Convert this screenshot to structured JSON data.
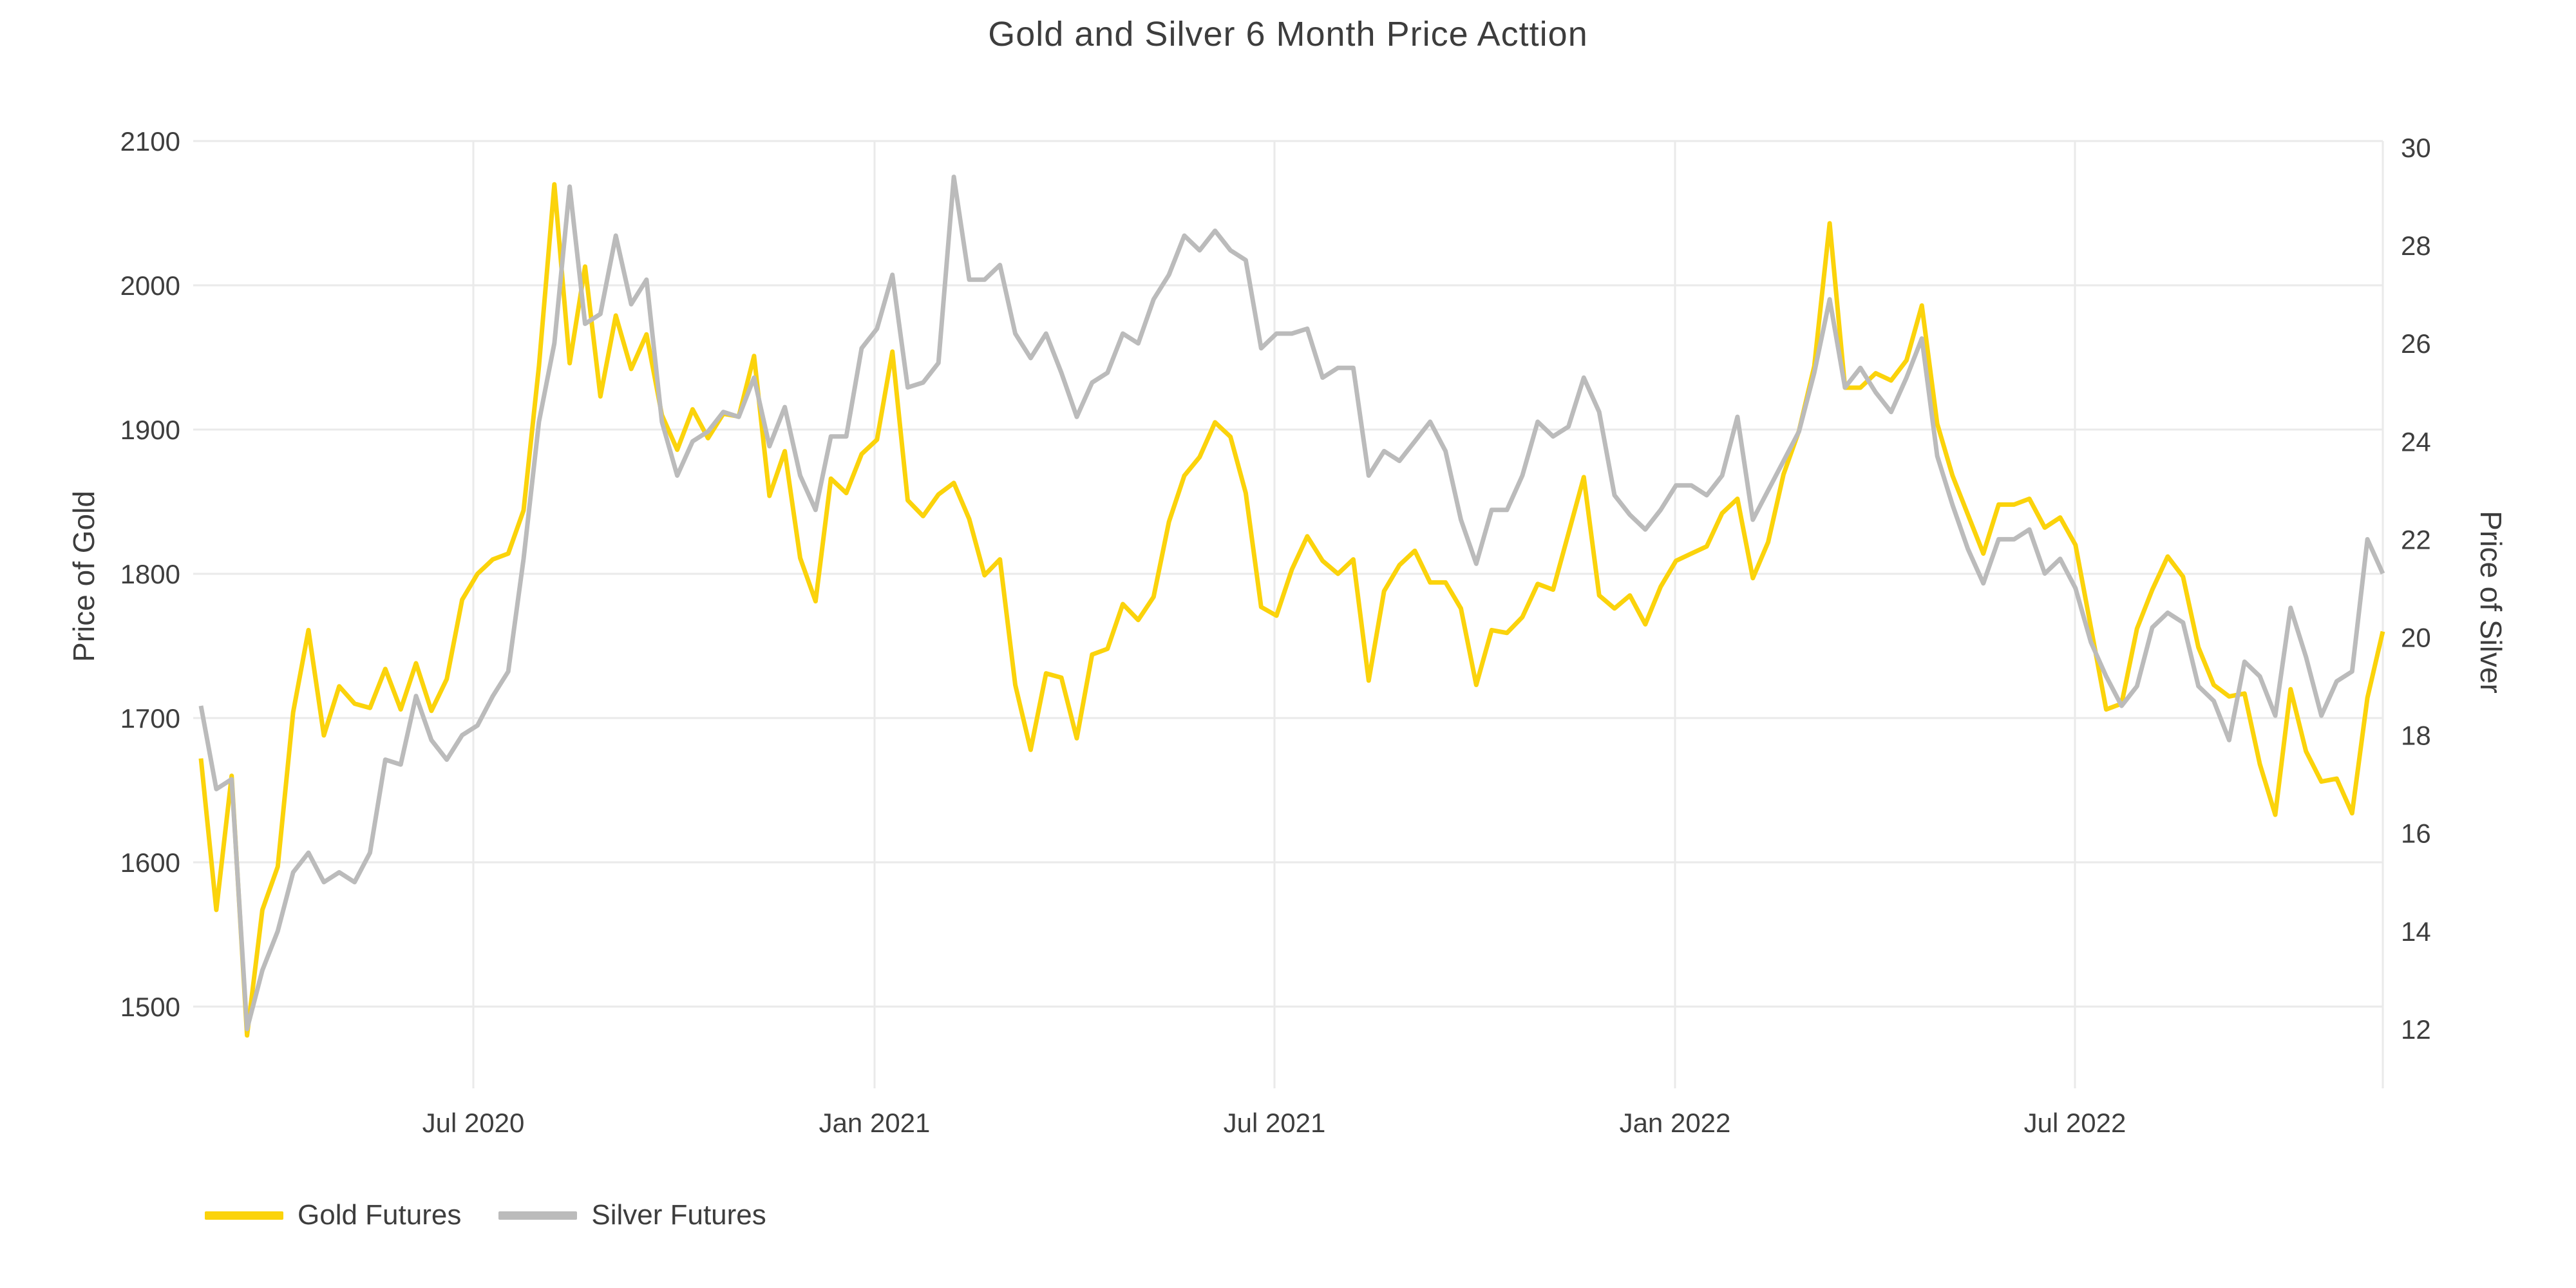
{
  "title": "Gold and Silver 6 Month Price Acttion",
  "left_axis": {
    "title": "Price of Gold",
    "ticks": [
      2100,
      2000,
      1900,
      1800,
      1700,
      1600,
      1500
    ]
  },
  "right_axis": {
    "title": "Price of Silver",
    "ticks": [
      30,
      28,
      26,
      24,
      22,
      20,
      18,
      16,
      14,
      12
    ]
  },
  "x_axis": {
    "tick_labels": [
      "Jul 2020",
      "Jan 2021",
      "Jul 2021",
      "Jan 2022",
      "Jul 2022"
    ]
  },
  "legend": [
    {
      "label": "Gold Futures",
      "color": "#FBD30B"
    },
    {
      "label": "Silver Futures",
      "color": "#BBBBBB"
    }
  ],
  "colors": {
    "background": "#ffffff",
    "gridline": "#EAEAEA",
    "text": "#3E3E3E",
    "gold_line": "#FBD30B",
    "silver_line": "#BBBBBB"
  },
  "chart_data": {
    "type": "line",
    "title": "Gold and Silver 6 Month Price Acttion",
    "x_start_date": "2020-02-24",
    "x_end_date": "2022-11-14",
    "x_interval": "weekly",
    "xlabel": "",
    "ylabel_left": "Price of Gold",
    "ylabel_right": "Price of Silver",
    "ylim_left": [
      1443,
      2100
    ],
    "ylim_right": [
      10.8,
      30.1
    ],
    "grid": true,
    "legend_position": "bottom-left",
    "series": [
      {
        "name": "Gold Futures",
        "axis": "left",
        "color": "#FBD30B",
        "values": [
          1672,
          1567,
          1660,
          1480,
          1567,
          1597,
          1704,
          1761,
          1688,
          1722,
          1710,
          1707,
          1734,
          1706,
          1738,
          1705,
          1727,
          1782,
          1800,
          1810,
          1814,
          1844,
          1944,
          2070,
          1946,
          2013,
          1923,
          1979,
          1942,
          1966,
          1910,
          1886,
          1914,
          1894,
          1911,
          1909,
          1951,
          1854,
          1885,
          1811,
          1781,
          1866,
          1856,
          1883,
          1893,
          1954,
          1851,
          1840,
          1855,
          1863,
          1838,
          1799,
          1810,
          1723,
          1678,
          1731,
          1728,
          1686,
          1744,
          1748,
          1779,
          1768,
          1784,
          1836,
          1868,
          1881,
          1905,
          1895,
          1856,
          1777,
          1771,
          1803,
          1826,
          1809,
          1800,
          1810,
          1726,
          1788,
          1806,
          1816,
          1794,
          1794,
          1776,
          1723,
          1761,
          1759,
          1770,
          1793,
          1789,
          1828,
          1867,
          1785,
          1776,
          1785,
          1765,
          1791,
          1809,
          1814,
          1819,
          1842,
          1852,
          1797,
          1822,
          1869,
          1899,
          1944,
          2043,
          1929,
          1929,
          1939,
          1934,
          1948,
          1986,
          1904,
          1868,
          1841,
          1814,
          1848,
          1848,
          1852,
          1832,
          1839,
          1820,
          1763,
          1706,
          1710,
          1762,
          1789,
          1812,
          1798,
          1749,
          1723,
          1715,
          1717,
          1668,
          1633,
          1720,
          1677,
          1656,
          1658,
          1634,
          1714,
          1760
        ]
      },
      {
        "name": "Silver Futures",
        "axis": "right",
        "color": "#BBBBBB",
        "values": [
          18.6,
          16.9,
          17.1,
          12.0,
          13.2,
          14.0,
          15.2,
          15.6,
          15.0,
          15.2,
          15.0,
          15.6,
          17.5,
          17.4,
          18.8,
          17.9,
          17.5,
          18.0,
          18.2,
          18.8,
          19.3,
          21.6,
          24.4,
          26.0,
          29.2,
          26.4,
          26.6,
          28.2,
          26.8,
          27.3,
          24.4,
          23.3,
          24.0,
          24.2,
          24.6,
          24.5,
          25.3,
          23.9,
          24.7,
          23.3,
          22.6,
          24.1,
          24.1,
          25.9,
          26.3,
          27.4,
          25.1,
          25.2,
          25.6,
          29.4,
          27.3,
          27.3,
          27.6,
          26.2,
          25.7,
          26.2,
          25.4,
          24.5,
          25.2,
          25.4,
          26.2,
          26.0,
          26.9,
          27.4,
          28.2,
          27.9,
          28.3,
          27.9,
          27.7,
          25.9,
          26.2,
          26.2,
          26.3,
          25.3,
          25.5,
          25.5,
          23.3,
          23.8,
          23.6,
          24.0,
          24.4,
          23.8,
          22.4,
          21.5,
          22.6,
          22.6,
          23.3,
          24.4,
          24.1,
          24.3,
          25.3,
          24.6,
          22.9,
          22.5,
          22.2,
          22.6,
          23.1,
          23.1,
          22.9,
          23.3,
          24.5,
          22.4,
          23.0,
          23.6,
          24.2,
          25.4,
          26.9,
          25.1,
          25.5,
          25.0,
          24.6,
          25.3,
          26.1,
          23.7,
          22.7,
          21.8,
          21.1,
          22.0,
          22.0,
          22.2,
          21.3,
          21.6,
          21.0,
          19.9,
          19.2,
          18.6,
          19.0,
          20.2,
          20.5,
          20.3,
          19.0,
          18.7,
          17.9,
          19.5,
          19.2,
          18.4,
          20.6,
          19.6,
          18.4,
          19.1,
          19.3,
          22.0,
          21.3
        ]
      }
    ]
  }
}
